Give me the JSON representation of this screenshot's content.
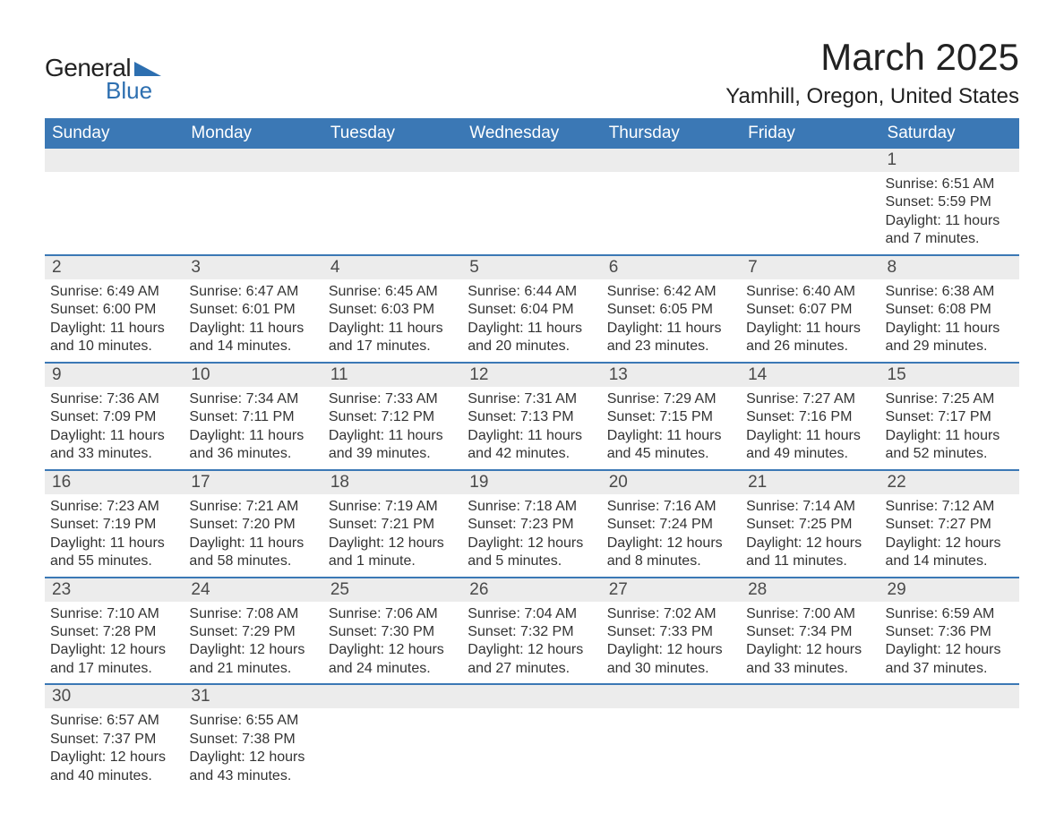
{
  "brand": {
    "word1": "General",
    "word2": "Blue",
    "tri_color": "#2d6fb0"
  },
  "header": {
    "title": "March 2025",
    "location": "Yamhill, Oregon, United States"
  },
  "style": {
    "header_bg": "#3b78b5",
    "header_text": "#ffffff",
    "daynum_bg": "#ececec",
    "daynum_text": "#4a4a4a",
    "body_text": "#333333",
    "row_border": "#3b78b5",
    "title_fontsize": 42,
    "location_fontsize": 24,
    "weekday_fontsize": 19,
    "daynum_fontsize": 19,
    "body_fontsize": 16
  },
  "weekdays": [
    "Sunday",
    "Monday",
    "Tuesday",
    "Wednesday",
    "Thursday",
    "Friday",
    "Saturday"
  ],
  "weeks": [
    [
      {
        "n": "",
        "empty": true
      },
      {
        "n": "",
        "empty": true
      },
      {
        "n": "",
        "empty": true
      },
      {
        "n": "",
        "empty": true
      },
      {
        "n": "",
        "empty": true
      },
      {
        "n": "",
        "empty": true
      },
      {
        "n": "1",
        "sunrise": "Sunrise: 6:51 AM",
        "sunset": "Sunset: 5:59 PM",
        "daylight": "Daylight: 11 hours and 7 minutes."
      }
    ],
    [
      {
        "n": "2",
        "sunrise": "Sunrise: 6:49 AM",
        "sunset": "Sunset: 6:00 PM",
        "daylight": "Daylight: 11 hours and 10 minutes."
      },
      {
        "n": "3",
        "sunrise": "Sunrise: 6:47 AM",
        "sunset": "Sunset: 6:01 PM",
        "daylight": "Daylight: 11 hours and 14 minutes."
      },
      {
        "n": "4",
        "sunrise": "Sunrise: 6:45 AM",
        "sunset": "Sunset: 6:03 PM",
        "daylight": "Daylight: 11 hours and 17 minutes."
      },
      {
        "n": "5",
        "sunrise": "Sunrise: 6:44 AM",
        "sunset": "Sunset: 6:04 PM",
        "daylight": "Daylight: 11 hours and 20 minutes."
      },
      {
        "n": "6",
        "sunrise": "Sunrise: 6:42 AM",
        "sunset": "Sunset: 6:05 PM",
        "daylight": "Daylight: 11 hours and 23 minutes."
      },
      {
        "n": "7",
        "sunrise": "Sunrise: 6:40 AM",
        "sunset": "Sunset: 6:07 PM",
        "daylight": "Daylight: 11 hours and 26 minutes."
      },
      {
        "n": "8",
        "sunrise": "Sunrise: 6:38 AM",
        "sunset": "Sunset: 6:08 PM",
        "daylight": "Daylight: 11 hours and 29 minutes."
      }
    ],
    [
      {
        "n": "9",
        "sunrise": "Sunrise: 7:36 AM",
        "sunset": "Sunset: 7:09 PM",
        "daylight": "Daylight: 11 hours and 33 minutes."
      },
      {
        "n": "10",
        "sunrise": "Sunrise: 7:34 AM",
        "sunset": "Sunset: 7:11 PM",
        "daylight": "Daylight: 11 hours and 36 minutes."
      },
      {
        "n": "11",
        "sunrise": "Sunrise: 7:33 AM",
        "sunset": "Sunset: 7:12 PM",
        "daylight": "Daylight: 11 hours and 39 minutes."
      },
      {
        "n": "12",
        "sunrise": "Sunrise: 7:31 AM",
        "sunset": "Sunset: 7:13 PM",
        "daylight": "Daylight: 11 hours and 42 minutes."
      },
      {
        "n": "13",
        "sunrise": "Sunrise: 7:29 AM",
        "sunset": "Sunset: 7:15 PM",
        "daylight": "Daylight: 11 hours and 45 minutes."
      },
      {
        "n": "14",
        "sunrise": "Sunrise: 7:27 AM",
        "sunset": "Sunset: 7:16 PM",
        "daylight": "Daylight: 11 hours and 49 minutes."
      },
      {
        "n": "15",
        "sunrise": "Sunrise: 7:25 AM",
        "sunset": "Sunset: 7:17 PM",
        "daylight": "Daylight: 11 hours and 52 minutes."
      }
    ],
    [
      {
        "n": "16",
        "sunrise": "Sunrise: 7:23 AM",
        "sunset": "Sunset: 7:19 PM",
        "daylight": "Daylight: 11 hours and 55 minutes."
      },
      {
        "n": "17",
        "sunrise": "Sunrise: 7:21 AM",
        "sunset": "Sunset: 7:20 PM",
        "daylight": "Daylight: 11 hours and 58 minutes."
      },
      {
        "n": "18",
        "sunrise": "Sunrise: 7:19 AM",
        "sunset": "Sunset: 7:21 PM",
        "daylight": "Daylight: 12 hours and 1 minute."
      },
      {
        "n": "19",
        "sunrise": "Sunrise: 7:18 AM",
        "sunset": "Sunset: 7:23 PM",
        "daylight": "Daylight: 12 hours and 5 minutes."
      },
      {
        "n": "20",
        "sunrise": "Sunrise: 7:16 AM",
        "sunset": "Sunset: 7:24 PM",
        "daylight": "Daylight: 12 hours and 8 minutes."
      },
      {
        "n": "21",
        "sunrise": "Sunrise: 7:14 AM",
        "sunset": "Sunset: 7:25 PM",
        "daylight": "Daylight: 12 hours and 11 minutes."
      },
      {
        "n": "22",
        "sunrise": "Sunrise: 7:12 AM",
        "sunset": "Sunset: 7:27 PM",
        "daylight": "Daylight: 12 hours and 14 minutes."
      }
    ],
    [
      {
        "n": "23",
        "sunrise": "Sunrise: 7:10 AM",
        "sunset": "Sunset: 7:28 PM",
        "daylight": "Daylight: 12 hours and 17 minutes."
      },
      {
        "n": "24",
        "sunrise": "Sunrise: 7:08 AM",
        "sunset": "Sunset: 7:29 PM",
        "daylight": "Daylight: 12 hours and 21 minutes."
      },
      {
        "n": "25",
        "sunrise": "Sunrise: 7:06 AM",
        "sunset": "Sunset: 7:30 PM",
        "daylight": "Daylight: 12 hours and 24 minutes."
      },
      {
        "n": "26",
        "sunrise": "Sunrise: 7:04 AM",
        "sunset": "Sunset: 7:32 PM",
        "daylight": "Daylight: 12 hours and 27 minutes."
      },
      {
        "n": "27",
        "sunrise": "Sunrise: 7:02 AM",
        "sunset": "Sunset: 7:33 PM",
        "daylight": "Daylight: 12 hours and 30 minutes."
      },
      {
        "n": "28",
        "sunrise": "Sunrise: 7:00 AM",
        "sunset": "Sunset: 7:34 PM",
        "daylight": "Daylight: 12 hours and 33 minutes."
      },
      {
        "n": "29",
        "sunrise": "Sunrise: 6:59 AM",
        "sunset": "Sunset: 7:36 PM",
        "daylight": "Daylight: 12 hours and 37 minutes."
      }
    ],
    [
      {
        "n": "30",
        "sunrise": "Sunrise: 6:57 AM",
        "sunset": "Sunset: 7:37 PM",
        "daylight": "Daylight: 12 hours and 40 minutes."
      },
      {
        "n": "31",
        "sunrise": "Sunrise: 6:55 AM",
        "sunset": "Sunset: 7:38 PM",
        "daylight": "Daylight: 12 hours and 43 minutes."
      },
      {
        "n": "",
        "empty": true
      },
      {
        "n": "",
        "empty": true
      },
      {
        "n": "",
        "empty": true
      },
      {
        "n": "",
        "empty": true
      },
      {
        "n": "",
        "empty": true
      }
    ]
  ]
}
